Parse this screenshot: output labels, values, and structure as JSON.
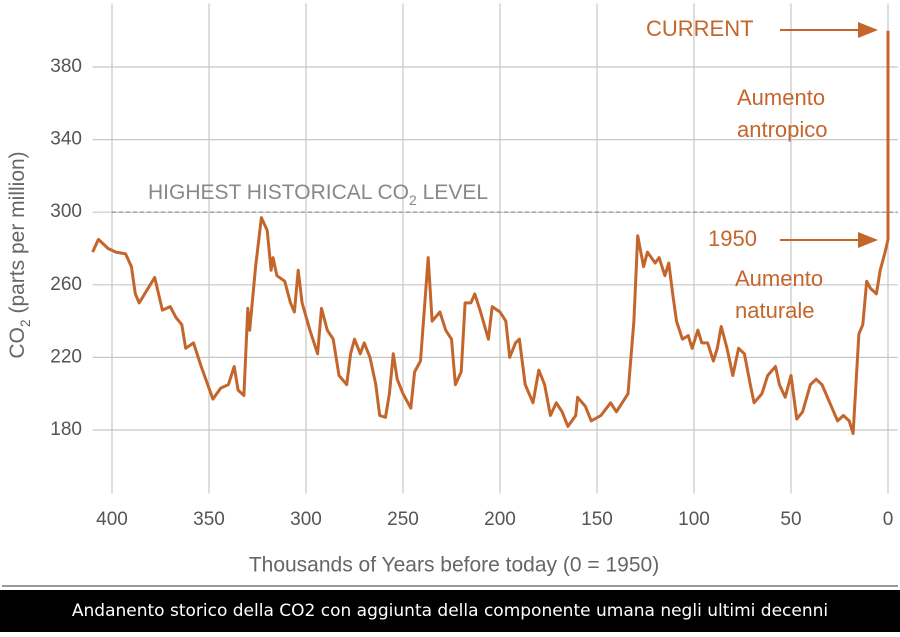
{
  "chart_data": {
    "type": "line",
    "xlabel": "Thousands of Years before today (0 = 1950)",
    "ylabel": {
      "main": "CO",
      "sub": "2",
      "rest": " (parts per million)"
    },
    "xlim": [
      410,
      -5
    ],
    "xticks": [
      400,
      350,
      300,
      250,
      200,
      150,
      100,
      50,
      0
    ],
    "ylim": [
      145,
      415
    ],
    "yticks": [
      180,
      220,
      260,
      300,
      340,
      380
    ],
    "grid": true,
    "reference_line": {
      "value": 300,
      "label": {
        "main": "HIGHEST HISTORICAL CO",
        "sub": "2",
        "rest": " LEVEL"
      }
    },
    "annotations": {
      "current": "CURRENT",
      "year": "1950",
      "anthropic": [
        "Aumento",
        "antropico"
      ],
      "natural": [
        "Aumento",
        "naturale"
      ]
    },
    "caption": "Andanento storico della CO2 con aggiunta della componente umana negli ultimi decenni",
    "series": [
      {
        "name": "CO2",
        "color": "#c4662c",
        "x": [
          410,
          407,
          402,
          398,
          393,
          390,
          388,
          386,
          382,
          378,
          374,
          370,
          367,
          364,
          362,
          358,
          354,
          348,
          344,
          340,
          337,
          335,
          332,
          330,
          329,
          326,
          323,
          320,
          318,
          317,
          315,
          311,
          308,
          306,
          304,
          302,
          298,
          294,
          292,
          289,
          286,
          283,
          279,
          277,
          275,
          272,
          270,
          267,
          264,
          262,
          259,
          257,
          255,
          253,
          250,
          246,
          244,
          241,
          237,
          235,
          231,
          228,
          225,
          223,
          220,
          218,
          215,
          213,
          210,
          206,
          204,
          200,
          197,
          195,
          192,
          190,
          187,
          183,
          180,
          177,
          174,
          171,
          168,
          165,
          161,
          160,
          156,
          153,
          148,
          143,
          140,
          137,
          134,
          131,
          129,
          126,
          124,
          120,
          118,
          115,
          113,
          111,
          109,
          106,
          103,
          101,
          98,
          96,
          93,
          90,
          88,
          86,
          83,
          80,
          77,
          74,
          71,
          69,
          65,
          62,
          58,
          56,
          53,
          50,
          47,
          44,
          40,
          37,
          34,
          30,
          26,
          23,
          20,
          18,
          15,
          13,
          11,
          9,
          6,
          4,
          1.5,
          0,
          0
        ],
        "values": [
          278,
          285,
          280,
          278,
          277,
          270,
          255,
          250,
          257,
          264,
          246,
          248,
          242,
          238,
          225,
          228,
          215,
          197,
          203,
          205,
          215,
          202,
          199,
          247,
          235,
          270,
          297,
          290,
          268,
          275,
          265,
          262,
          250,
          245,
          268,
          250,
          235,
          222,
          247,
          235,
          230,
          210,
          205,
          222,
          230,
          222,
          228,
          220,
          205,
          188,
          187,
          200,
          222,
          208,
          200,
          192,
          212,
          218,
          275,
          240,
          245,
          235,
          230,
          205,
          212,
          250,
          250,
          255,
          245,
          230,
          248,
          245,
          240,
          220,
          228,
          230,
          205,
          195,
          213,
          205,
          188,
          195,
          190,
          182,
          188,
          198,
          193,
          185,
          188,
          195,
          190,
          195,
          200,
          240,
          287,
          270,
          278,
          272,
          275,
          265,
          272,
          255,
          240,
          230,
          232,
          225,
          235,
          228,
          228,
          218,
          225,
          237,
          225,
          210,
          225,
          222,
          205,
          195,
          200,
          210,
          215,
          205,
          198,
          210,
          186,
          190,
          205,
          208,
          205,
          195,
          185,
          188,
          185,
          178,
          233,
          238,
          262,
          258,
          255,
          268,
          278,
          285,
          400
        ]
      }
    ]
  }
}
